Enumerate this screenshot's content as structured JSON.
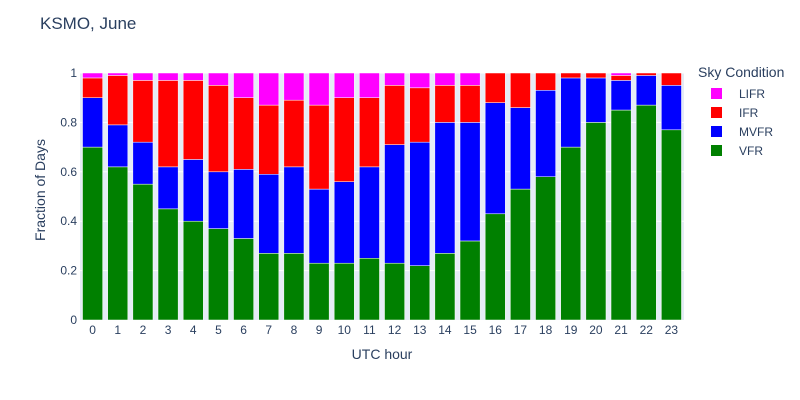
{
  "chart_data": {
    "type": "bar",
    "stacked": true,
    "title": "KSMO, June",
    "xlabel": "UTC hour",
    "ylabel": "Fraction of Days",
    "ylim": [
      0,
      1
    ],
    "yticks": [
      0,
      0.2,
      0.4,
      0.6,
      0.8,
      1
    ],
    "ytick_labels": [
      "0",
      "0.2",
      "0.4",
      "0.6",
      "0.8",
      "1"
    ],
    "categories": [
      "0",
      "1",
      "2",
      "3",
      "4",
      "5",
      "6",
      "7",
      "8",
      "9",
      "10",
      "11",
      "12",
      "13",
      "14",
      "15",
      "16",
      "17",
      "18",
      "19",
      "20",
      "21",
      "22",
      "23"
    ],
    "grid": true,
    "legend_title": "Sky Condition",
    "legend_position": "right",
    "series": [
      {
        "name": "VFR",
        "color": "#008000",
        "values": [
          0.7,
          0.62,
          0.55,
          0.45,
          0.4,
          0.37,
          0.33,
          0.27,
          0.27,
          0.23,
          0.23,
          0.25,
          0.23,
          0.22,
          0.27,
          0.32,
          0.43,
          0.53,
          0.58,
          0.7,
          0.8,
          0.85,
          0.87,
          0.77
        ]
      },
      {
        "name": "MVFR",
        "color": "#0000ff",
        "values": [
          0.2,
          0.17,
          0.17,
          0.17,
          0.25,
          0.23,
          0.28,
          0.32,
          0.35,
          0.3,
          0.33,
          0.37,
          0.48,
          0.5,
          0.53,
          0.48,
          0.45,
          0.33,
          0.35,
          0.28,
          0.18,
          0.12,
          0.12,
          0.18
        ]
      },
      {
        "name": "IFR",
        "color": "#ff0000",
        "values": [
          0.08,
          0.2,
          0.25,
          0.35,
          0.32,
          0.35,
          0.29,
          0.28,
          0.27,
          0.34,
          0.34,
          0.28,
          0.24,
          0.22,
          0.15,
          0.15,
          0.12,
          0.14,
          0.07,
          0.02,
          0.02,
          0.02,
          0.01,
          0.05
        ]
      },
      {
        "name": "LIFR",
        "color": "#ff00ff",
        "values": [
          0.02,
          0.01,
          0.03,
          0.03,
          0.03,
          0.05,
          0.1,
          0.13,
          0.11,
          0.13,
          0.1,
          0.1,
          0.05,
          0.06,
          0.05,
          0.05,
          0.0,
          0.0,
          0.0,
          0.0,
          0.0,
          0.01,
          0.0,
          0.0
        ]
      }
    ],
    "legend_order": [
      "LIFR",
      "IFR",
      "MVFR",
      "VFR"
    ]
  }
}
